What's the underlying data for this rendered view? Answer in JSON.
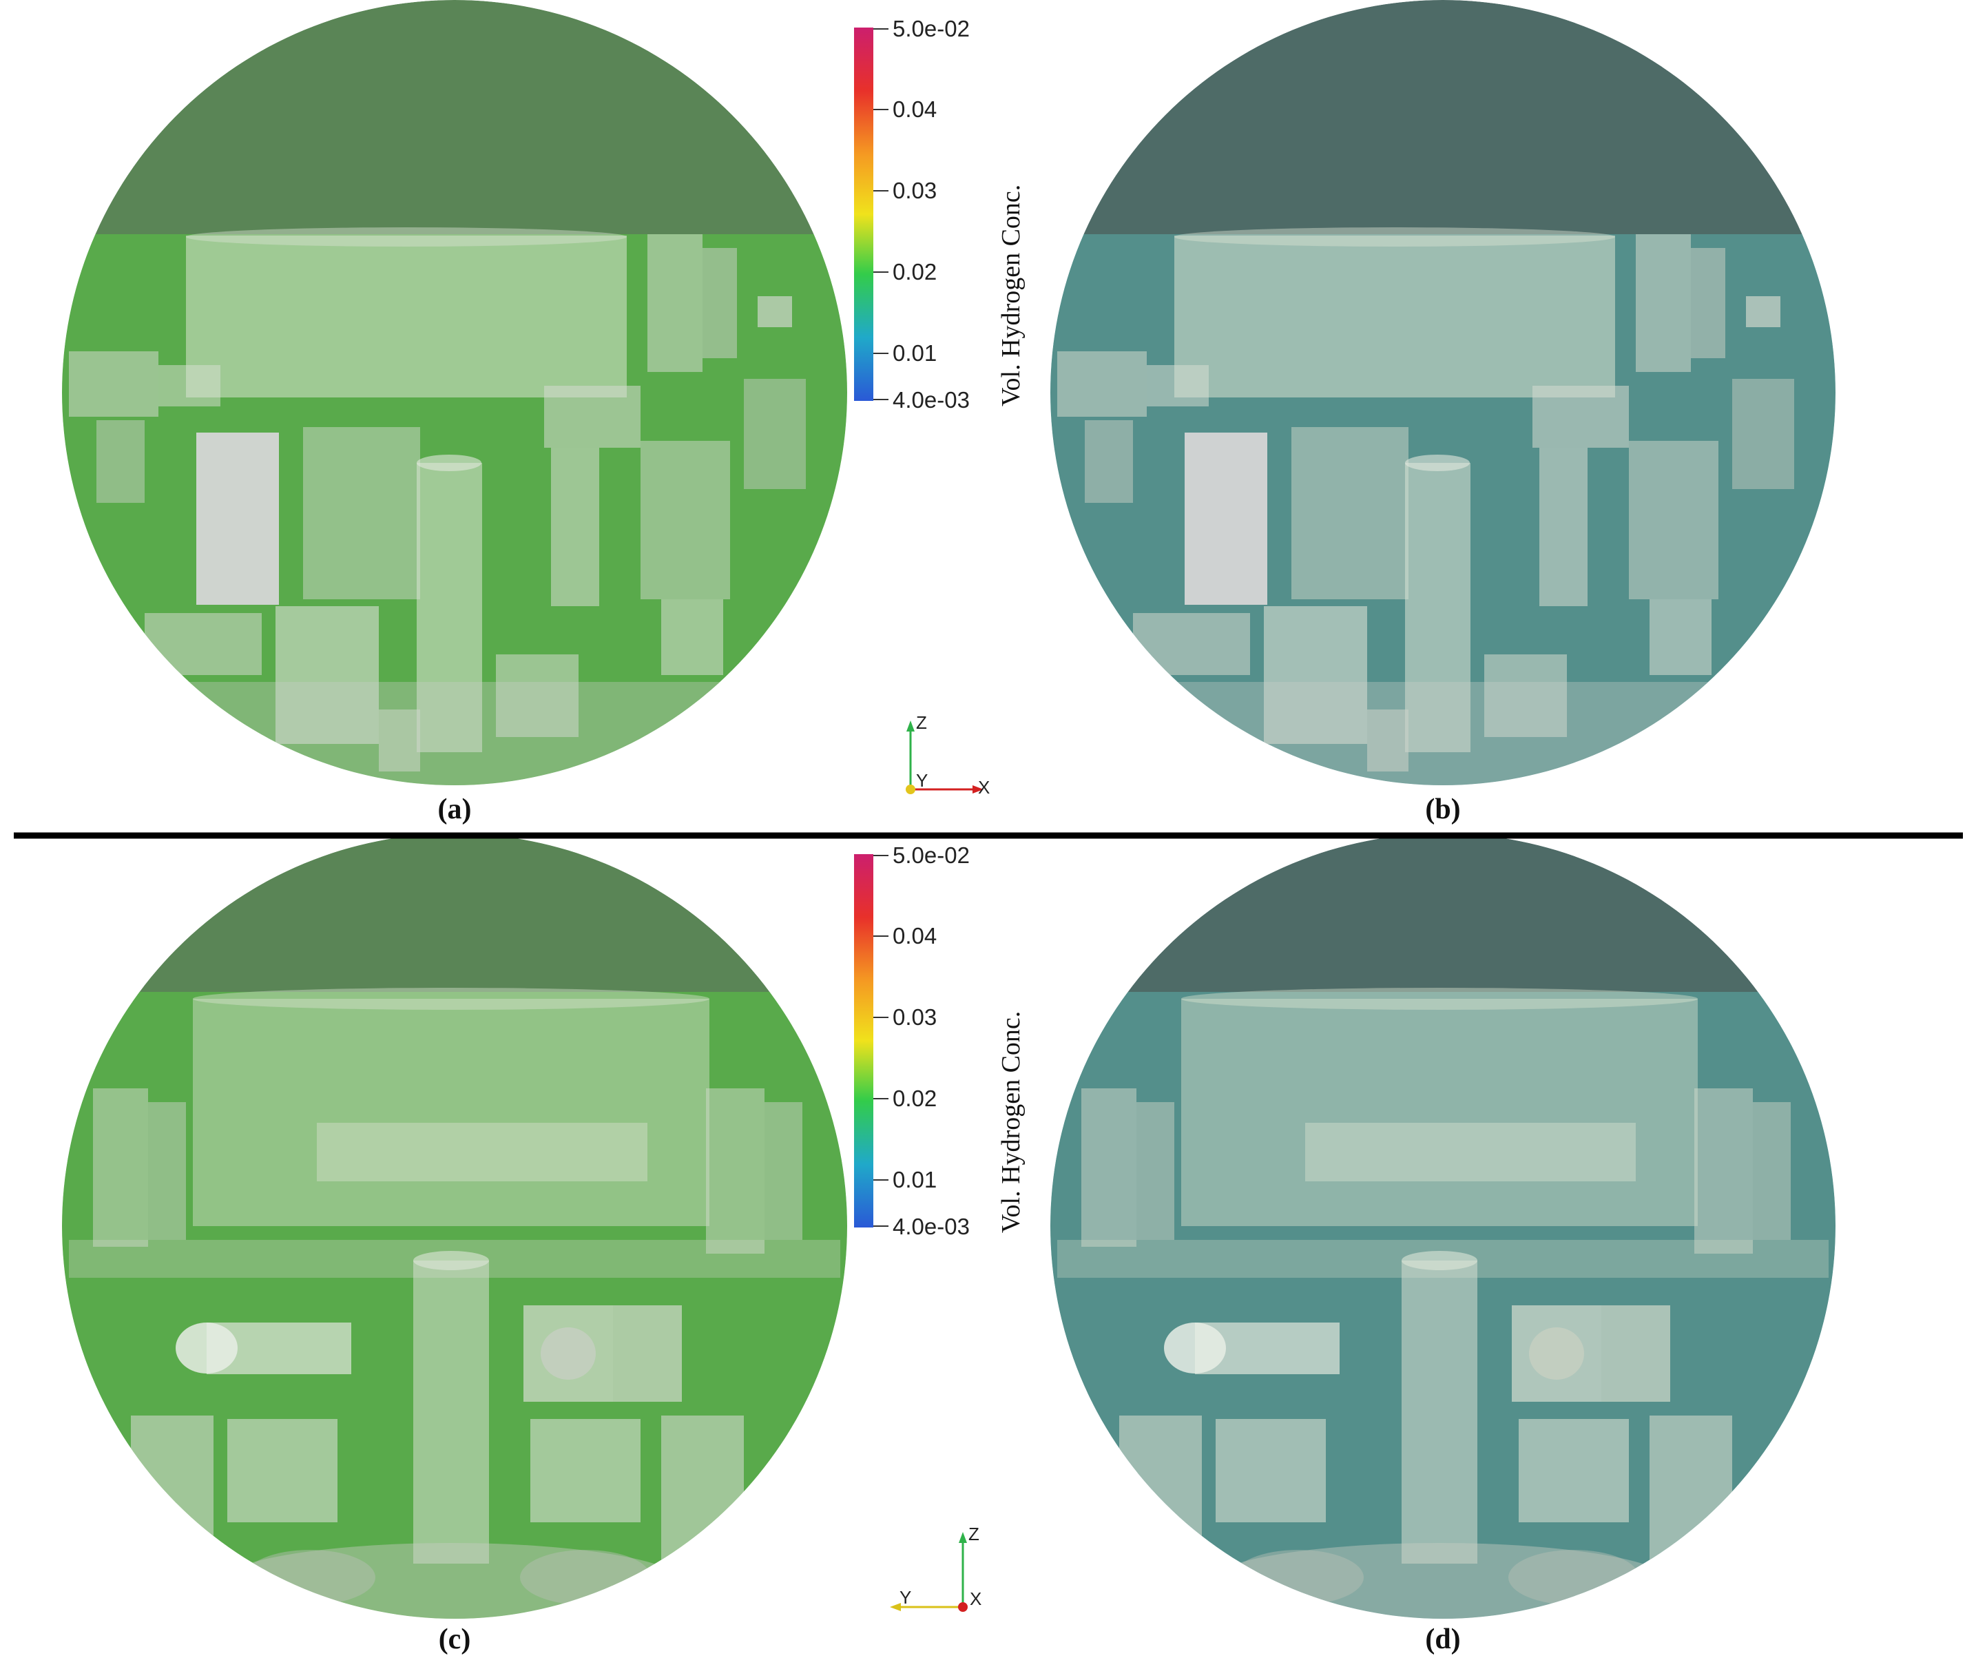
{
  "panels": [
    {
      "label": "(a)",
      "tint": "#58d83f"
    },
    {
      "label": "(b)",
      "tint": "#5ec6c4"
    },
    {
      "label": "(c)",
      "tint": "#58d83f"
    },
    {
      "label": "(d)",
      "tint": "#5ec6c4"
    }
  ],
  "colorbar": {
    "title": "Vol. Hydrogen Conc.",
    "ticks": [
      "5.0e-02",
      "0.04",
      "0.03",
      "0.02",
      "0.01",
      "4.0e-03"
    ],
    "stops": [
      "#cc1f6d",
      "#e8312a",
      "#f59a22",
      "#f0e21c",
      "#33cc4a",
      "#20a9c9",
      "#2a59d6"
    ]
  },
  "axes_top": {
    "up": "Z",
    "right": "X",
    "center": "Y"
  },
  "axes_bottom": {
    "up": "Z",
    "left": "Y",
    "center": "X"
  },
  "colors": {
    "dome_green": "#5a8556",
    "dome_teal": "#4e6b67",
    "equipment_grey": "#c9cfc8"
  }
}
